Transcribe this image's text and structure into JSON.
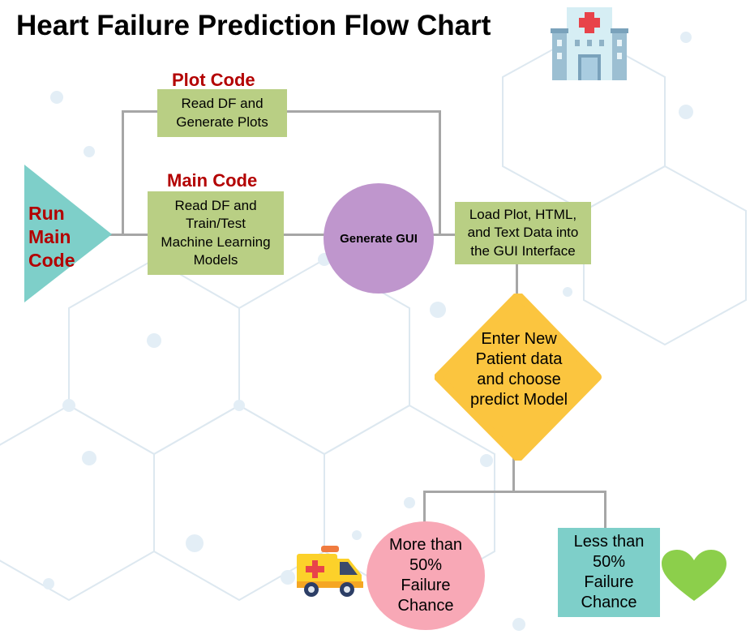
{
  "title": "Heart Failure Prediction Flow Chart",
  "start": {
    "label": "Run\nMain\nCode"
  },
  "plot_code": {
    "heading": "Plot Code",
    "box_text": "Read DF and\nGenerate Plots"
  },
  "main_code": {
    "heading": "Main Code",
    "box_text": "Read DF and\nTrain/Test\nMachine Learning\nModels"
  },
  "generate_gui": {
    "label": "Generate GUI"
  },
  "load_data": {
    "text": "Load Plot, HTML,\nand Text Data into\nthe GUI Interface"
  },
  "decision": {
    "text": "Enter New\nPatient data\nand choose\npredict Model"
  },
  "outcome_high": {
    "text": "More than\n50%\nFailure\nChance"
  },
  "outcome_low": {
    "text": "Less than\n50%\nFailure\nChance"
  },
  "icons": [
    "hospital-icon",
    "ambulance-icon",
    "heart-icon"
  ],
  "colors": {
    "box_green": "#b9cf84",
    "heading_red": "#b30000",
    "start_teal": "#7ecfc9",
    "gui_purple": "#bf96cd",
    "decision_yellow": "#fbc53f",
    "high_risk_pink": "#f8a8b6",
    "low_risk_teal": "#7ecfc9",
    "heart_green": "#8ccf4b",
    "connector_gray": "#a6a6a6"
  }
}
